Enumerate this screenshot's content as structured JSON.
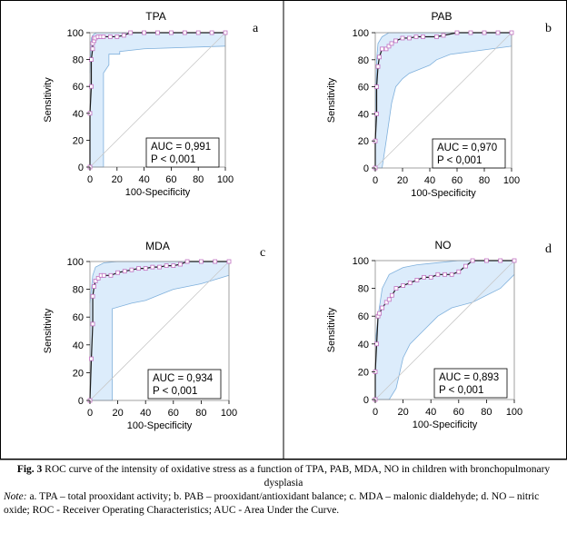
{
  "panels": [
    {
      "id": "a",
      "title": "TPA",
      "auc_text": "AUC = 0,991",
      "p_text": "P < 0,001"
    },
    {
      "id": "b",
      "title": "PAB",
      "auc_text": "AUC = 0,970",
      "p_text": "P < 0,001"
    },
    {
      "id": "c",
      "title": "MDA",
      "auc_text": "AUC = 0,934",
      "p_text": "P < 0,001"
    },
    {
      "id": "d",
      "title": "NO",
      "auc_text": "AUC = 0,893",
      "p_text": "P < 0,001"
    }
  ],
  "caption": {
    "fig_label": "Fig. 3",
    "title_rest": " ROC curve of the intensity of oxidative stress as a function of TPA, PAB, MDA, NO in children with bronchopulmonary dysplasia",
    "note_label": "Note:",
    "note_rest": " a. TPA – total prooxidant activity; b. PAB – prooxidant/antioxidant balance; c. MDA – malonic dialdehyde; d. NO – nitric oxide; ROC - Receiver Operating Characteristics; AUC - Area Under the Curve."
  },
  "chart_data": [
    {
      "type": "line",
      "title": "TPA",
      "xlabel": "100-Specificity",
      "ylabel": "Sensitivity",
      "xlim": [
        0,
        100
      ],
      "ylim": [
        0,
        100
      ],
      "xticks": [
        0,
        20,
        40,
        60,
        80,
        100
      ],
      "yticks": [
        0,
        20,
        40,
        60,
        80,
        100
      ],
      "auc": 0.991,
      "p": "< 0,001",
      "series": [
        {
          "x": [
            0,
            0,
            1,
            1,
            2,
            2,
            3,
            3,
            4,
            6,
            8,
            10,
            15,
            20,
            25,
            30,
            40,
            50,
            60,
            70,
            80,
            90,
            100
          ],
          "y": [
            0,
            40,
            60,
            80,
            88,
            92,
            94,
            96,
            96,
            97,
            97,
            97,
            97,
            97,
            98,
            100,
            100,
            100,
            100,
            100,
            100,
            100,
            100
          ]
        }
      ],
      "ci_upper": {
        "x": [
          0,
          1,
          2,
          3,
          5,
          10,
          20,
          40,
          60,
          100
        ],
        "y": [
          70,
          96,
          98,
          99,
          100,
          100,
          100,
          100,
          100,
          100
        ]
      },
      "ci_lower": {
        "x": [
          0,
          5,
          10,
          10,
          14,
          14,
          22,
          22,
          40,
          100
        ],
        "y": [
          0,
          0,
          0,
          70,
          76,
          84,
          84,
          86,
          88,
          90
        ]
      },
      "grid": false,
      "diagonal": true
    },
    {
      "type": "line",
      "title": "PAB",
      "xlabel": "100-Specificity",
      "ylabel": "Sensitivity",
      "xlim": [
        0,
        100
      ],
      "ylim": [
        0,
        100
      ],
      "xticks": [
        0,
        20,
        40,
        60,
        80,
        100
      ],
      "yticks": [
        0,
        20,
        40,
        60,
        80,
        100
      ],
      "auc": 0.97,
      "p": "< 0,001",
      "series": [
        {
          "x": [
            0,
            0,
            1,
            1,
            2,
            3,
            5,
            8,
            10,
            12,
            15,
            20,
            25,
            30,
            35,
            45,
            50,
            60,
            70,
            80,
            90,
            100
          ],
          "y": [
            0,
            20,
            40,
            60,
            75,
            82,
            88,
            88,
            90,
            92,
            94,
            96,
            96,
            97,
            97,
            97,
            98,
            100,
            100,
            100,
            100,
            100
          ]
        }
      ],
      "ci_upper": {
        "x": [
          0,
          1,
          2,
          5,
          10,
          20,
          40,
          100
        ],
        "y": [
          30,
          80,
          92,
          97,
          100,
          100,
          100,
          100
        ]
      },
      "ci_lower": {
        "x": [
          0,
          5,
          8,
          12,
          15,
          20,
          25,
          30,
          35,
          40,
          45,
          55,
          70,
          100
        ],
        "y": [
          0,
          0,
          20,
          48,
          60,
          66,
          70,
          72,
          74,
          76,
          80,
          84,
          86,
          90
        ]
      },
      "grid": false,
      "diagonal": true
    },
    {
      "type": "line",
      "title": "MDA",
      "xlabel": "100-Specificity",
      "ylabel": "Sensitivity",
      "xlim": [
        0,
        100
      ],
      "ylim": [
        0,
        100
      ],
      "xticks": [
        0,
        20,
        40,
        60,
        80,
        100
      ],
      "yticks": [
        0,
        20,
        40,
        60,
        80,
        100
      ],
      "auc": 0.934,
      "p": "< 0,001",
      "series": [
        {
          "x": [
            0,
            1,
            2,
            2,
            3,
            4,
            6,
            8,
            10,
            15,
            20,
            25,
            30,
            35,
            40,
            45,
            50,
            55,
            60,
            65,
            70,
            80,
            90,
            100
          ],
          "y": [
            0,
            30,
            55,
            75,
            82,
            86,
            88,
            90,
            90,
            90,
            92,
            93,
            94,
            95,
            95,
            96,
            96,
            97,
            97,
            98,
            100,
            100,
            100,
            100
          ]
        }
      ],
      "ci_upper": {
        "x": [
          0,
          2,
          4,
          10,
          20,
          40,
          100
        ],
        "y": [
          70,
          90,
          96,
          99,
          100,
          100,
          100
        ]
      },
      "ci_lower": {
        "x": [
          0,
          8,
          16,
          16,
          30,
          40,
          55,
          60,
          80,
          100
        ],
        "y": [
          0,
          0,
          0,
          66,
          70,
          72,
          78,
          80,
          84,
          90
        ]
      },
      "grid": false,
      "diagonal": true
    },
    {
      "type": "line",
      "title": "NO",
      "xlabel": "100-Specificity",
      "ylabel": "Sensitivity",
      "xlim": [
        0,
        100
      ],
      "ylim": [
        0,
        100
      ],
      "xticks": [
        0,
        20,
        40,
        60,
        80,
        100
      ],
      "yticks": [
        0,
        20,
        40,
        60,
        80,
        100
      ],
      "auc": 0.893,
      "p": "< 0,001",
      "series": [
        {
          "x": [
            0,
            0,
            1,
            2,
            3,
            5,
            8,
            10,
            12,
            15,
            20,
            25,
            30,
            35,
            40,
            45,
            50,
            55,
            60,
            65,
            70,
            80,
            90,
            100
          ],
          "y": [
            0,
            20,
            40,
            60,
            62,
            66,
            70,
            72,
            75,
            80,
            82,
            84,
            86,
            88,
            88,
            90,
            90,
            90,
            92,
            96,
            100,
            100,
            100,
            100
          ]
        }
      ],
      "ci_upper": {
        "x": [
          0,
          2,
          5,
          10,
          20,
          30,
          40,
          60,
          80,
          100
        ],
        "y": [
          40,
          60,
          80,
          90,
          95,
          97,
          98,
          100,
          100,
          100
        ]
      },
      "ci_lower": {
        "x": [
          0,
          10,
          15,
          20,
          25,
          35,
          45,
          55,
          70,
          90,
          100
        ],
        "y": [
          0,
          0,
          8,
          30,
          40,
          50,
          60,
          66,
          70,
          80,
          90
        ]
      },
      "grid": false,
      "diagonal": true
    }
  ]
}
